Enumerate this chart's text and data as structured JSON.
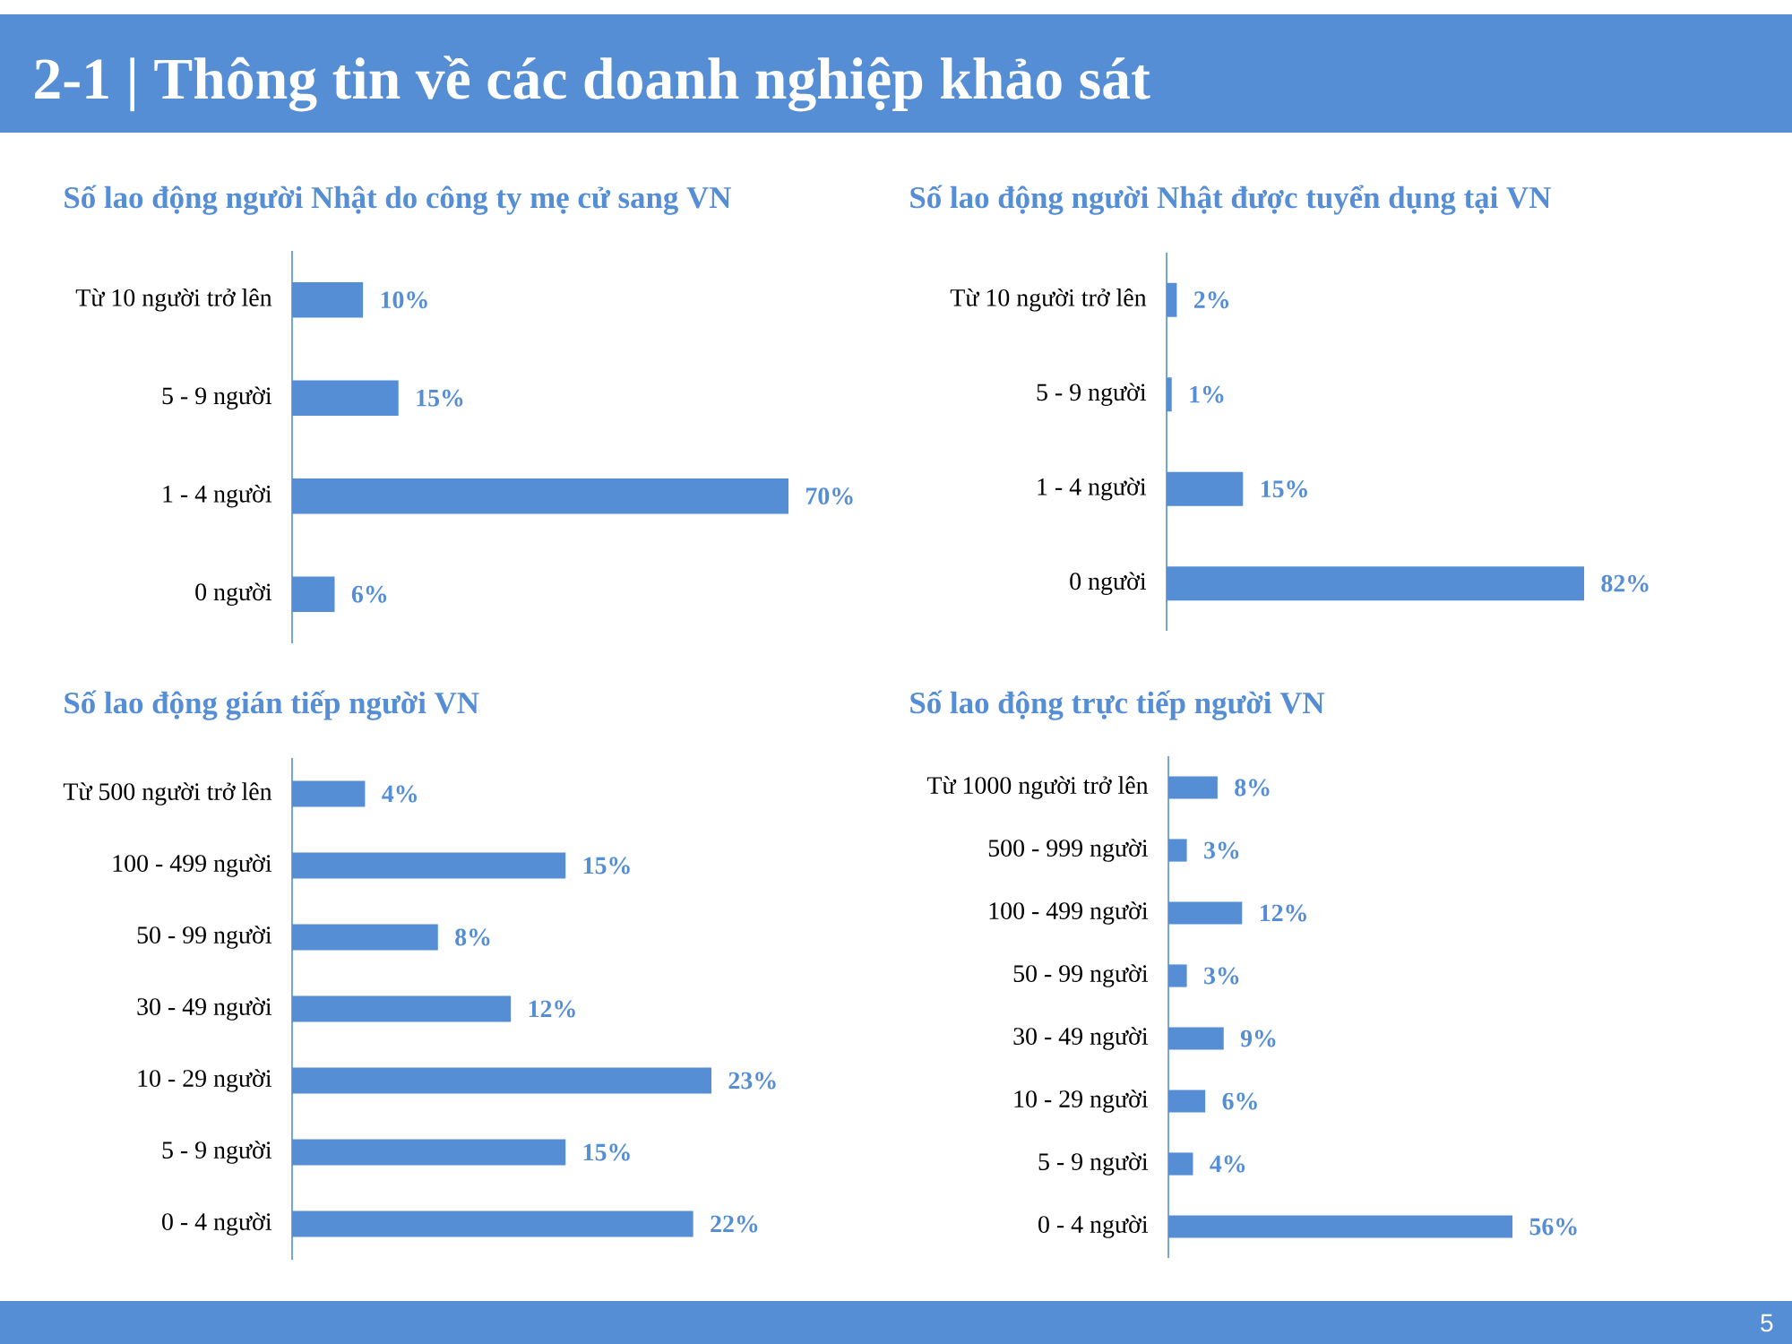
{
  "chart_data": [
    {
      "type": "other",
      "title": "2-1 | Thông tin về các doanh nghiệp khảo sát",
      "annotations": [
        "5"
      ]
    },
    {
      "type": "bar",
      "orientation": "horizontal",
      "title": "Số lao động người Nhật do công ty mẹ cử sang VN",
      "categories": [
        "Từ 10 người trở lên",
        "5 - 9 người",
        "1 - 4 người",
        "0 người"
      ],
      "values": [
        10,
        15,
        70,
        6
      ],
      "value_labels": [
        "10%",
        "15%",
        "70%",
        "6%"
      ],
      "color": "#558ed5"
    },
    {
      "type": "bar",
      "orientation": "horizontal",
      "title": "Số lao động người Nhật được tuyển dụng tại VN",
      "categories": [
        "Từ 10 người trở lên",
        "5 - 9 người",
        "1 - 4 người",
        "0 người"
      ],
      "values": [
        2,
        1,
        15,
        82
      ],
      "value_labels": [
        "2%",
        "1%",
        "15%",
        "82%"
      ],
      "color": "#558ed5"
    },
    {
      "type": "bar",
      "orientation": "horizontal",
      "title": "Số lao động gián tiếp người VN",
      "categories": [
        "Từ 500 người trở lên",
        "100 - 499 người",
        "50 - 99 người",
        "30 - 49 người",
        "10 - 29 người",
        "5 - 9 người",
        "0 - 4 người"
      ],
      "values": [
        4,
        15,
        8,
        12,
        23,
        15,
        22
      ],
      "value_labels": [
        "4%",
        "15%",
        "8%",
        "12%",
        "23%",
        "15%",
        "22%"
      ],
      "color": "#558ed5"
    },
    {
      "type": "bar",
      "orientation": "horizontal",
      "title": "Số lao động trực tiếp người VN",
      "categories": [
        "Từ 1000 người trở lên",
        "500 - 999 người",
        "100 - 499 người",
        "50 - 99 người",
        "30 - 49 người",
        "10 - 29 người",
        "5 - 9 người",
        "0 - 4 người"
      ],
      "values": [
        8,
        3,
        12,
        3,
        9,
        6,
        4,
        56
      ],
      "value_labels": [
        "8%",
        "3%",
        "12%",
        "3%",
        "9%",
        "6%",
        "4%",
        "56%"
      ],
      "color": "#558ed5"
    }
  ]
}
